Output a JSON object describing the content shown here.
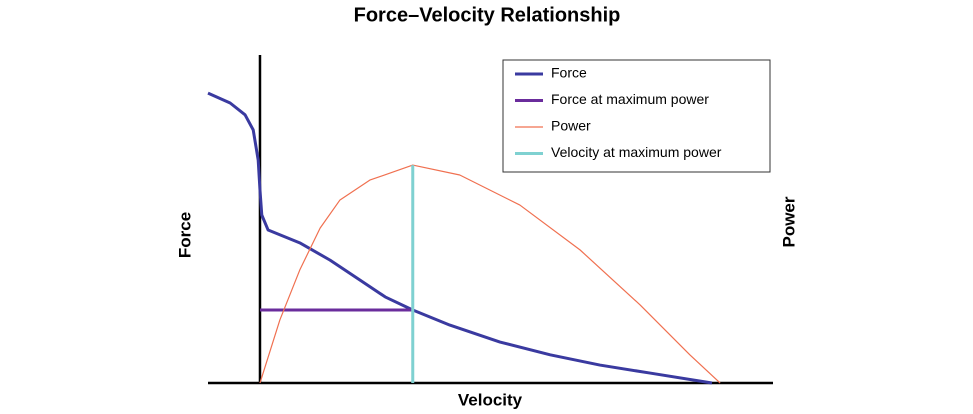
{
  "chart_data": {
    "type": "line",
    "title": "Force–Velocity Relationship",
    "x_label": "Velocity",
    "y_label": "Force",
    "y2_label": "Power",
    "xlim": [
      -11.5,
      113.5
    ],
    "ylim": [
      0,
      100
    ],
    "y2lim": [
      0,
      100
    ],
    "legend": "top-right",
    "series": [
      {
        "name": "Force",
        "color": "#3a3aa0",
        "width": 3,
        "x": [
          -11.5,
          -6.6,
          -3.3,
          -1.5,
          -0.4,
          0,
          0.4,
          1.8,
          8.8,
          15.5,
          22.1,
          27.7,
          33.8,
          42.0,
          53.1,
          64.2,
          75.2,
          86.3,
          100
        ],
        "values": [
          90.6,
          87.5,
          83.8,
          79.1,
          69.7,
          60.3,
          52.5,
          47.8,
          43.8,
          38.4,
          32.2,
          26.9,
          22.8,
          18.1,
          12.8,
          8.8,
          5.6,
          3.1,
          0
        ]
      },
      {
        "name": "Force at maximum power",
        "color": "#6a2c9c",
        "width": 3,
        "x": [
          0,
          33.8
        ],
        "values": [
          22.8,
          22.8
        ]
      },
      {
        "name": "Power",
        "color": "#f07050",
        "width": 1.2,
        "axis": "y2",
        "x": [
          0,
          4.4,
          8.8,
          13.3,
          17.7,
          24.3,
          33.8,
          44.2,
          57.5,
          70.8,
          84.1,
          95.1,
          101.8
        ],
        "values": [
          0,
          19.7,
          35.3,
          48.4,
          57.2,
          63.4,
          68.1,
          65.0,
          55.6,
          41.6,
          24.4,
          8.8,
          0
        ]
      },
      {
        "name": "Velocity at maximum power",
        "color": "#7fd1d1",
        "width": 3,
        "axis": "y2",
        "x": [
          33.8,
          33.8
        ],
        "values": [
          0,
          68.1
        ]
      }
    ]
  }
}
